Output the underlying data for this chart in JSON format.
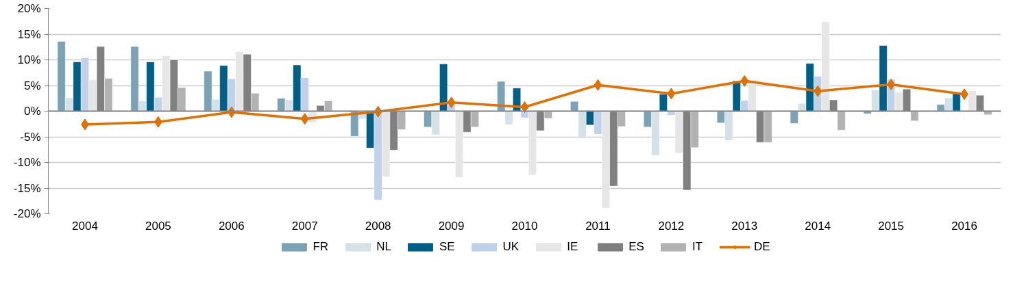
{
  "chart_data": {
    "type": "bar",
    "categories": [
      "2004",
      "2005",
      "2006",
      "2007",
      "2008",
      "2009",
      "2010",
      "2011",
      "2012",
      "2013",
      "2014",
      "2015",
      "2016"
    ],
    "series": [
      {
        "name": "FR",
        "color": "#7ba3b5",
        "values": [
          13.6,
          12.6,
          7.8,
          2.5,
          -4.9,
          -3.1,
          5.8,
          1.9,
          -3.1,
          -2.3,
          -2.4,
          -0.5,
          1.3
        ]
      },
      {
        "name": "NL",
        "color": "#d4e1e7",
        "values": [
          2.6,
          2.0,
          2.3,
          2.2,
          -1.5,
          -4.6,
          -2.6,
          -5.3,
          -8.6,
          -5.7,
          1.5,
          4.1,
          2.6
        ]
      },
      {
        "name": "SE",
        "color": "#005f87",
        "values": [
          9.6,
          9.6,
          8.9,
          9.0,
          -7.2,
          9.2,
          4.5,
          -2.7,
          3.3,
          5.9,
          9.3,
          12.8,
          3.4
        ]
      },
      {
        "name": "UK",
        "color": "#c0d1ea",
        "values": [
          10.4,
          2.7,
          6.3,
          6.5,
          -17.3,
          1.4,
          -1.3,
          -4.5,
          -0.8,
          2.1,
          6.8,
          6.2,
          null
        ]
      },
      {
        "name": "IE",
        "color": "#e6e6e6",
        "values": [
          6.1,
          10.8,
          11.6,
          -2.2,
          -12.8,
          -12.9,
          -12.4,
          -18.9,
          -8.2,
          6.1,
          17.4,
          3.7,
          4.0
        ]
      },
      {
        "name": "ES",
        "color": "#808080",
        "values": [
          12.6,
          10.0,
          11.1,
          1.1,
          -7.6,
          -4.1,
          -3.8,
          -14.6,
          -15.4,
          -6.1,
          2.2,
          4.3,
          3.1
        ]
      },
      {
        "name": "IT",
        "color": "#b2b2b2",
        "values": [
          6.4,
          4.6,
          3.5,
          2.0,
          -3.6,
          -3.1,
          -1.4,
          -3.0,
          -7.1,
          -6.1,
          -3.7,
          -1.9,
          -0.7
        ]
      },
      {
        "name": "DE",
        "color": "#e07000",
        "type": "line",
        "values": [
          -2.6,
          -2.1,
          -0.2,
          -1.5,
          -0.1,
          1.7,
          0.8,
          5.1,
          3.4,
          5.9,
          3.9,
          5.2,
          3.3
        ]
      }
    ],
    "ylim": [
      -20,
      20
    ],
    "yticks": [
      {
        "value": -20,
        "label": "-20%"
      },
      {
        "value": -15,
        "label": "-15%"
      },
      {
        "value": -10,
        "label": "-10%"
      },
      {
        "value": -5,
        "label": "-5%"
      },
      {
        "value": 0,
        "label": "0%"
      },
      {
        "value": 5,
        "label": "5%"
      },
      {
        "value": 10,
        "label": "10%"
      },
      {
        "value": 15,
        "label": "15%"
      },
      {
        "value": 20,
        "label": "20%"
      }
    ],
    "grid": "y",
    "legend": "bottom",
    "marker": "diamond",
    "line_style": "solid"
  }
}
